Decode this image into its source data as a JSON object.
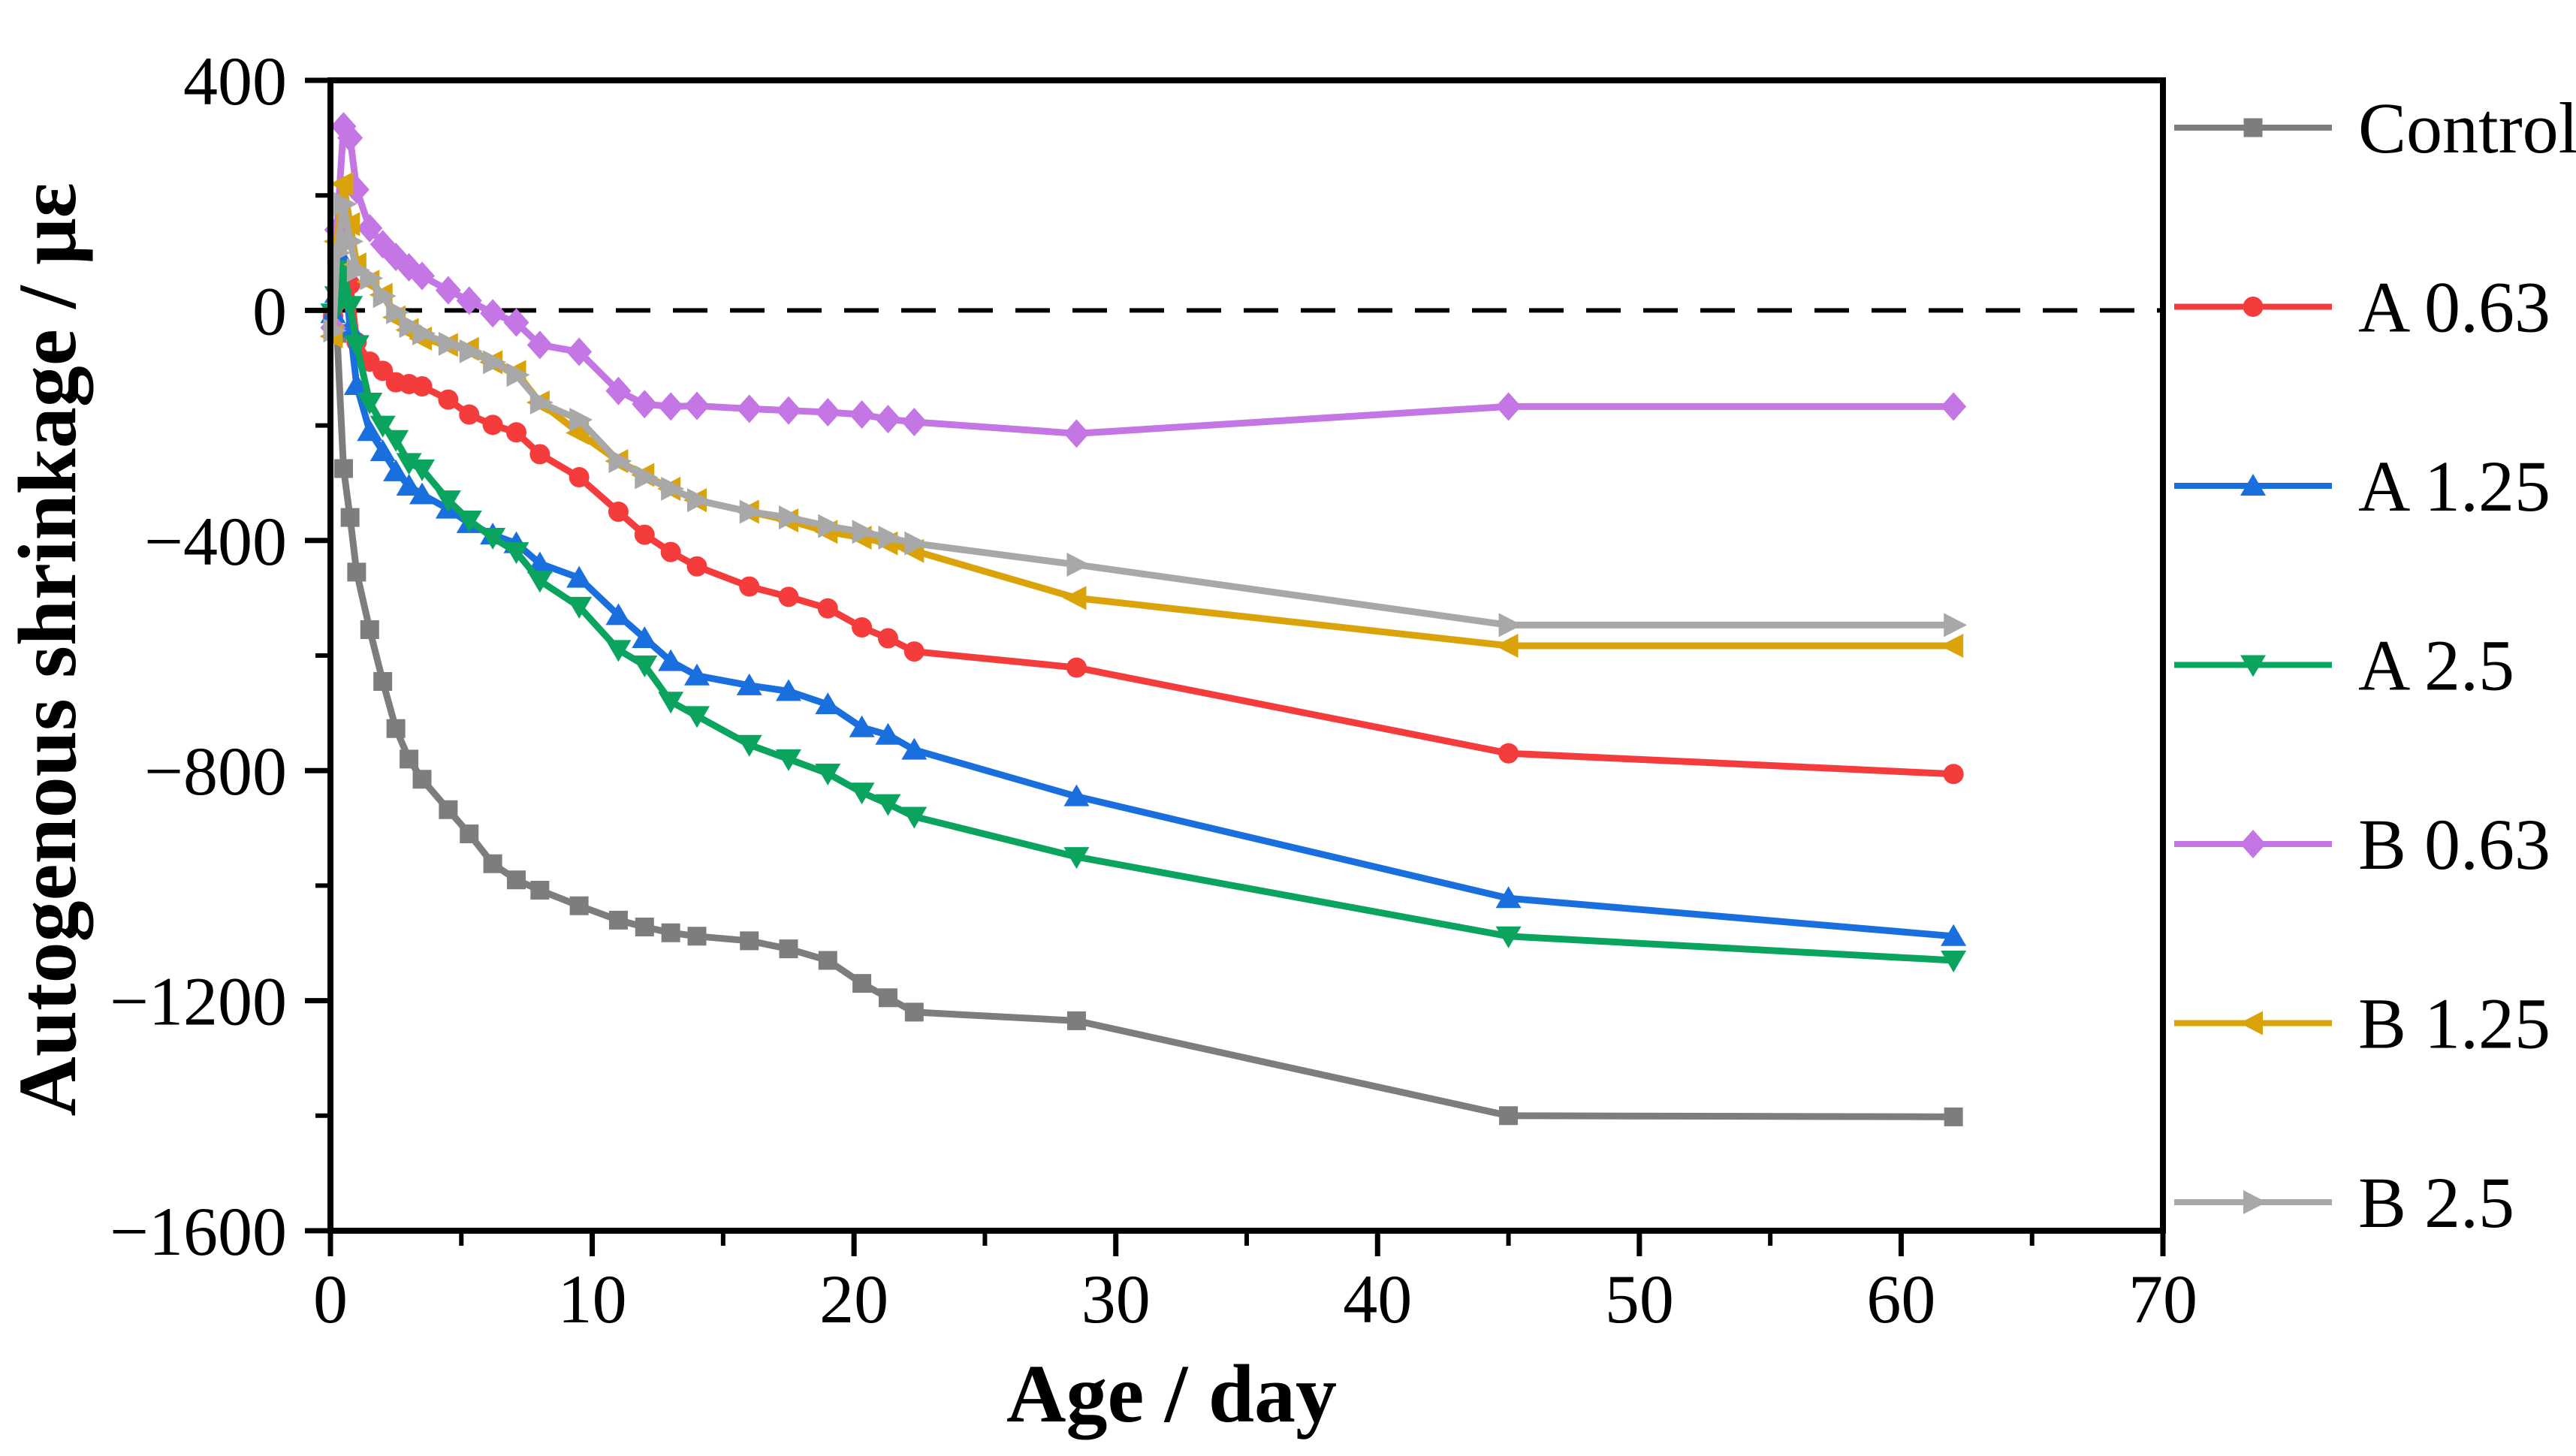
{
  "chart_data": {
    "type": "line",
    "title": "",
    "xlabel": "Age / day",
    "ylabel": "Autogenous shrinkage / με",
    "xlim": [
      0,
      70
    ],
    "ylim": [
      -1600,
      400
    ],
    "x_major_ticks": [
      0,
      10,
      20,
      30,
      40,
      50,
      60,
      70
    ],
    "x_minor_ticks": [
      5,
      15,
      25,
      35,
      45,
      55,
      65
    ],
    "x_tick_labels": [
      "0",
      "10",
      "20",
      "30",
      "40",
      "50",
      "60",
      "70"
    ],
    "y_major_ticks": [
      400,
      0,
      -400,
      -800,
      -1200,
      -1600
    ],
    "y_minor_ticks": [
      200,
      -200,
      -600,
      -1000,
      -1400
    ],
    "y_tick_labels": [
      "400",
      "0",
      "−400",
      "−800",
      "−1200",
      "−1600"
    ],
    "grid": false,
    "zero_line": {
      "show": true,
      "y": 0,
      "style": "dashed",
      "color": "#000000"
    },
    "legend_position": "right-outside",
    "x_shared_days": [
      0.1,
      0.25,
      0.5,
      0.75,
      1,
      1.5,
      2,
      2.5,
      3,
      3.5,
      4.5,
      5.3,
      6.2,
      7.1,
      8,
      9.5,
      11,
      12,
      13,
      14,
      16,
      17.5,
      19,
      20.3,
      21.3,
      22.3,
      28.5,
      45,
      62
    ],
    "series": [
      {
        "name": "Control",
        "color": "#7d7d7d",
        "marker": "square",
        "values": [
          -5,
          -40,
          -275,
          -360,
          -455,
          -555,
          -645,
          -727,
          -780,
          -815,
          -868,
          -910,
          -962,
          -990,
          -1008,
          -1035,
          -1060,
          -1072,
          -1082,
          -1088,
          -1096,
          -1110,
          -1130,
          -1170,
          -1195,
          -1220,
          -1235,
          -1400,
          -1402
        ]
      },
      {
        "name": "A 0.63",
        "color": "#f53c3c",
        "marker": "circle",
        "values": [
          -10,
          15,
          40,
          45,
          -55,
          -89,
          -105,
          -125,
          -128,
          -132,
          -155,
          -181,
          -199,
          -212,
          -250,
          -290,
          -350,
          -390,
          -420,
          -445,
          -480,
          -498,
          -518,
          -551,
          -570,
          -593,
          -621,
          -770,
          -806
        ]
      },
      {
        "name": "A 1.25",
        "color": "#1a6fdf",
        "marker": "triangle-up",
        "values": [
          -5,
          30,
          85,
          -30,
          -130,
          -210,
          -245,
          -280,
          -305,
          -320,
          -345,
          -370,
          -390,
          -405,
          -440,
          -465,
          -530,
          -570,
          -610,
          -635,
          -652,
          -662,
          -685,
          -725,
          -738,
          -764,
          -845,
          -1022,
          -1088
        ]
      },
      {
        "name": "A 2.5",
        "color": "#0aa45f",
        "marker": "triangle-down",
        "values": [
          -5,
          25,
          70,
          8,
          -60,
          -160,
          -200,
          -225,
          -265,
          -276,
          -330,
          -365,
          -395,
          -420,
          -470,
          -515,
          -590,
          -617,
          -680,
          -705,
          -755,
          -780,
          -805,
          -838,
          -858,
          -880,
          -950,
          -1088,
          -1130
        ]
      },
      {
        "name": "B 0.63",
        "color": "#c476e4",
        "marker": "diamond",
        "values": [
          -30,
          140,
          320,
          300,
          210,
          143,
          115,
          93,
          75,
          60,
          35,
          17,
          -5,
          -21,
          -60,
          -72,
          -140,
          -163,
          -167,
          -166,
          -171,
          -174,
          -177,
          -181,
          -189,
          -194,
          -214,
          -167,
          -167
        ]
      },
      {
        "name": "B 1.25",
        "color": "#daa309",
        "marker": "triangle-left",
        "values": [
          -45,
          120,
          220,
          150,
          80,
          50,
          27,
          -12,
          -34,
          -49,
          -60,
          -67,
          -90,
          -107,
          -160,
          -213,
          -262,
          -286,
          -310,
          -330,
          -350,
          -365,
          -385,
          -395,
          -405,
          -418,
          -500,
          -583,
          -583
        ]
      },
      {
        "name": "B 2.5",
        "color": "#a8a8a8",
        "marker": "triangle-right",
        "values": [
          -35,
          100,
          185,
          120,
          70,
          56,
          25,
          -3,
          -27,
          -40,
          -58,
          -71,
          -90,
          -112,
          -160,
          -190,
          -262,
          -290,
          -310,
          -330,
          -350,
          -360,
          -375,
          -385,
          -395,
          -405,
          -442,
          -547,
          -547
        ]
      }
    ],
    "legend": [
      {
        "label": "Control",
        "color": "#7d7d7d",
        "marker": "square"
      },
      {
        "label": "A 0.63",
        "color": "#f53c3c",
        "marker": "circle"
      },
      {
        "label": "A 1.25",
        "color": "#1a6fdf",
        "marker": "triangle-up"
      },
      {
        "label": "A 2.5",
        "color": "#0aa45f",
        "marker": "triangle-down"
      },
      {
        "label": "B 0.63",
        "color": "#c476e4",
        "marker": "diamond"
      },
      {
        "label": "B 1.25",
        "color": "#daa309",
        "marker": "triangle-left"
      },
      {
        "label": "B 2.5",
        "color": "#a8a8a8",
        "marker": "triangle-right"
      }
    ],
    "axis_color": "#000000",
    "background_color": "#ffffff"
  }
}
